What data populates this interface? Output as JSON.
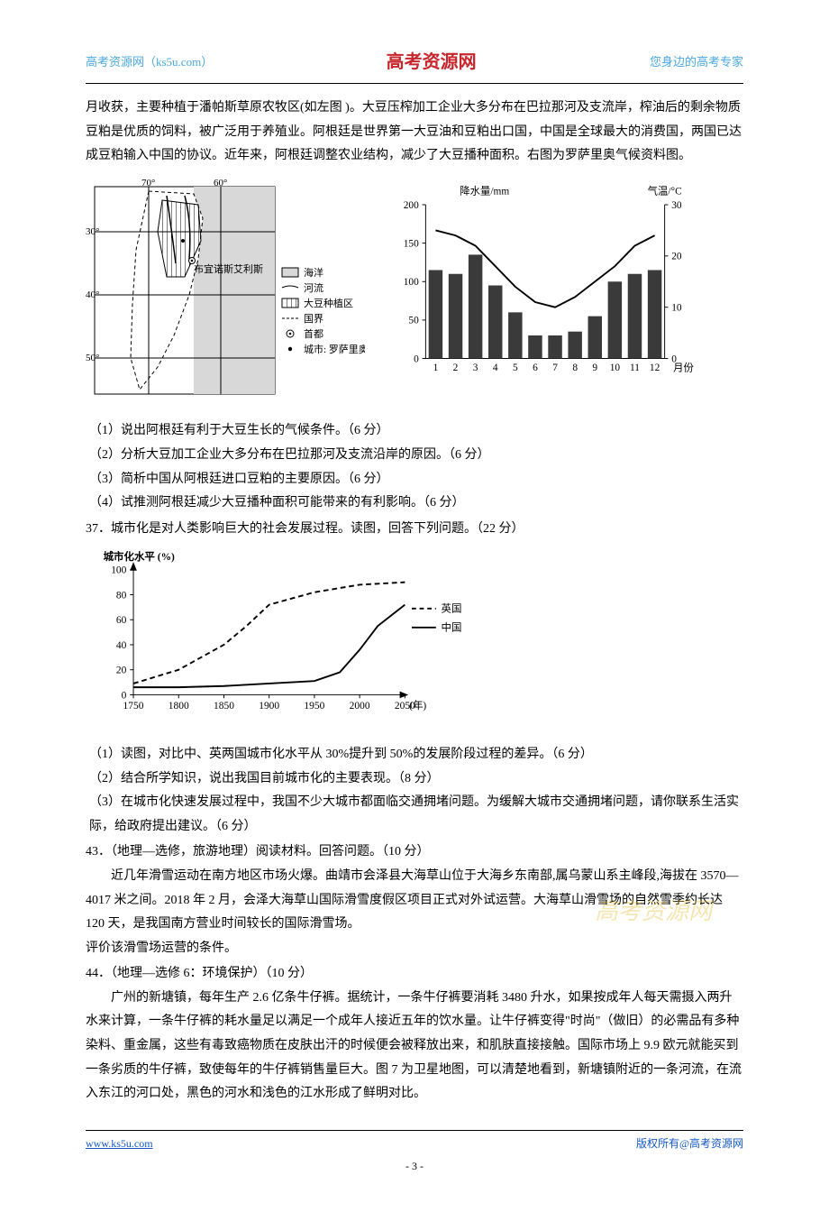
{
  "header": {
    "left": "高考资源网（ks5u.com）",
    "center": "高考资源网",
    "right": "您身边的高考专家"
  },
  "intro": {
    "p1": "月收获，主要种植于潘帕斯草原农牧区(如左图 )。大豆压榨加工企业大多分布在巴拉那河及支流岸，榨油后的剩余物质豆粕是优质的饲料，被广泛用于养殖业。阿根廷是世界第一大豆油和豆粕出口国，中国是全球最大的消费国，两国已达成豆粕输入中国的协议。近年来，阿根廷调整农业结构，减少了大豆播种面积。右图为罗萨里奥气候资料图。"
  },
  "map": {
    "lons": [
      "70°",
      "60°"
    ],
    "lats": [
      "30°",
      "40°",
      "50°"
    ],
    "capital_label": "布宜诺斯艾利斯",
    "legend": [
      {
        "type": "fill",
        "label": "海洋",
        "color": "#cfcfcf"
      },
      {
        "type": "line",
        "label": "河流"
      },
      {
        "type": "hatch",
        "label": "大豆种植区"
      },
      {
        "type": "dash",
        "label": "国界"
      },
      {
        "type": "circle",
        "label": "首都"
      },
      {
        "type": "dot",
        "label": "城市: 罗萨里奥"
      }
    ]
  },
  "climate": {
    "left_axis_title": "降水量/mm",
    "right_axis_title": "气温/°C",
    "x_axis_title": "月份",
    "months": [
      1,
      2,
      3,
      4,
      5,
      6,
      7,
      8,
      9,
      10,
      11,
      12
    ],
    "precip_ticks": [
      0,
      50,
      100,
      150,
      200
    ],
    "temp_ticks": [
      0,
      10,
      20,
      30
    ],
    "precip_values": [
      115,
      110,
      135,
      95,
      60,
      30,
      30,
      35,
      55,
      100,
      110,
      115
    ],
    "temp_values": [
      25,
      24,
      22,
      18,
      14,
      11,
      10,
      12,
      15,
      18,
      22,
      24
    ],
    "bar_color": "#3a3a3a",
    "line_color": "#000000",
    "axis_color": "#000000",
    "bg": "#ffffff"
  },
  "q36": {
    "s1": "（1）说出阿根廷有利于大豆生长的气候条件。（6 分）",
    "s2": "（2）分析大豆加工企业大多分布在巴拉那河及支流沿岸的原因。（6 分）",
    "s3": "（3）简析中国从阿根廷进口豆粕的主要原因。（6 分）",
    "s4": "（4）试推测阿根廷减少大豆播种面积可能带来的有利影响。（6 分）"
  },
  "q37": {
    "header": "37．城市化是对人类影响巨大的社会发展过程。读图，回答下列问题。（22 分）",
    "chart": {
      "title": "城市化水平 (%)",
      "y_ticks": [
        0,
        20,
        40,
        60,
        80,
        100
      ],
      "x_ticks": [
        1750,
        1800,
        1850,
        1900,
        1950,
        2000,
        2050
      ],
      "x_suffix": "(年)",
      "series": [
        {
          "name": "英国",
          "style": "dash",
          "color": "#000000",
          "points": [
            [
              1750,
              9
            ],
            [
              1800,
              20
            ],
            [
              1850,
              40
            ],
            [
              1875,
              55
            ],
            [
              1900,
              72
            ],
            [
              1950,
              82
            ],
            [
              2000,
              88
            ],
            [
              2050,
              90
            ]
          ]
        },
        {
          "name": "中国",
          "style": "solid",
          "color": "#000000",
          "points": [
            [
              1750,
              6
            ],
            [
              1800,
              6
            ],
            [
              1850,
              7
            ],
            [
              1900,
              9
            ],
            [
              1950,
              11
            ],
            [
              1978,
              18
            ],
            [
              2000,
              36
            ],
            [
              2020,
              55
            ],
            [
              2050,
              72
            ]
          ]
        }
      ]
    },
    "s1": "（1）读图，对比中、英两国城市化水平从 30%提升到 50%的发展阶段过程的差异。（6 分）",
    "s2": "（2）结合所学知识，说出我国目前城市化的主要表现。（8 分）",
    "s3": "（3）在城市化快速发展过程中，我国不少大城市都面临交通拥堵问题。为缓解大城市交通拥堵问题，请你联系生活实际，给政府提出建议。（6 分）"
  },
  "q43": {
    "header": "43．（地理—选修，旅游地理）阅读材料。回答问题。（10 分）",
    "body": "近几年滑雪运动在南方地区市场火爆。曲靖市会泽县大海草山位于大海乡东南部,属乌蒙山系主峰段,海拔在 3570—4017 米之间。2018 年 2 月，会泽大海草山国际滑雪度假区项目正式对外试运营。大海草山滑雪场的自然雪季约长达 120 天，是我国南方营业时间较长的国际滑雪场。",
    "ask": "评价该滑雪场运营的条件。"
  },
  "q44": {
    "header": "44．（地理—选修 6：环境保护）（10 分）",
    "body": "广州的新塘镇，每年生产 2.6 亿条牛仔裤。据统计，一条牛仔裤要消耗 3480 升水，如果按成年人每天需摄入两升水来计算，一条牛仔裤的耗水量足以满足一个成年人接近五年的饮水量。让牛仔裤变得\"时尚\"（做旧）的必需品有多种染料、重金属，这些有毒致癌物质在皮肤出汗的时候便会被释放出来，和肌肤直接接触。国际市场上 9.9 欧元就能买到一条劣质的牛仔裤，致使每年的牛仔裤销售量巨大。图 7 为卫星地图，可以清楚地看到，新塘镇附近的一条河流，在流入东江的河口处，黑色的河水和浅色的江水形成了鲜明对比。"
  },
  "watermark": "高考资源网",
  "footer": {
    "left": "www.ks5u.com",
    "right": "版权所有@高考资源网",
    "page": "- 3 -"
  }
}
